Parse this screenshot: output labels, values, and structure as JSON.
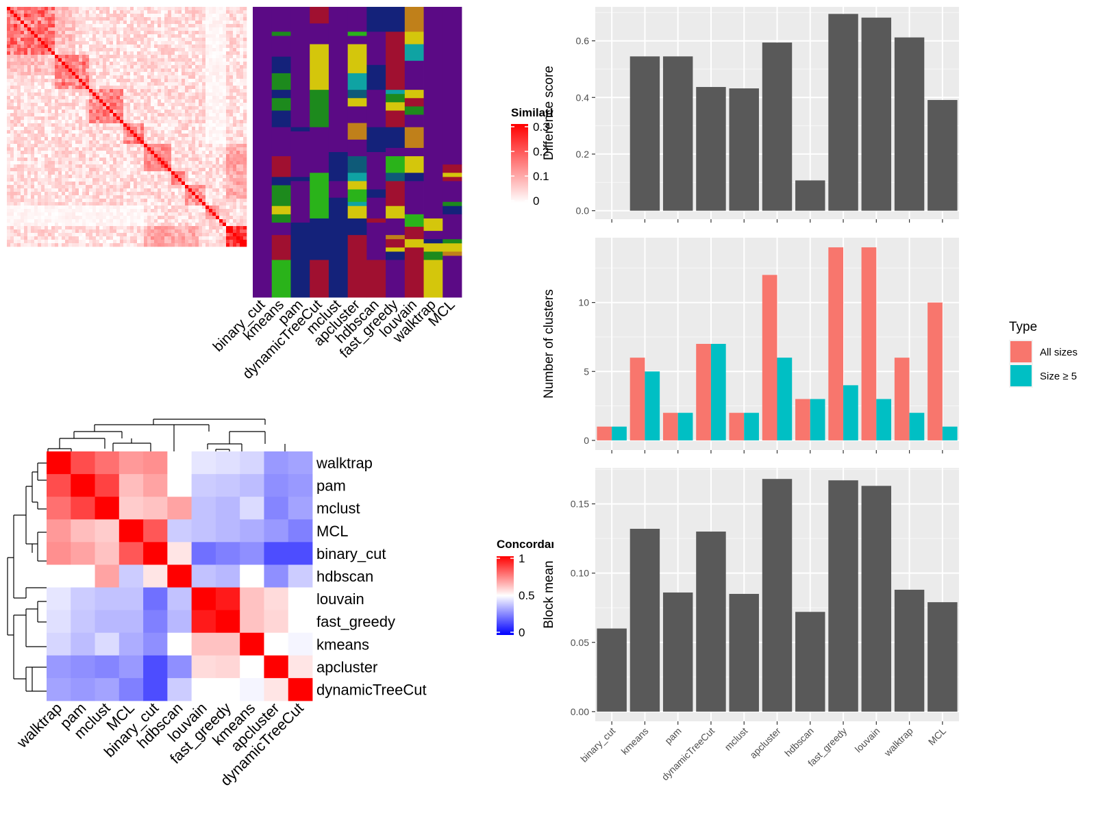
{
  "chart_data": [
    {
      "type": "heatmap",
      "name": "similarity-matrix",
      "legend_title": "Similarity",
      "legend_ticks": [
        0.3,
        0.2,
        0.1,
        0
      ],
      "legend_tick_labels": [
        "0.3",
        "0.2",
        "0.1",
        "0"
      ],
      "value_range": [
        0,
        0.3
      ],
      "colors": {
        "low": "#ffffff",
        "high": "#ff0000"
      },
      "n": 70,
      "block_starts": [
        0,
        14,
        24,
        34,
        40,
        48,
        52,
        58,
        62,
        64
      ],
      "notes": "70x70 symmetric similarity matrix with strong diagonal and a bright bottom-right block; cell values are approximated from the image"
    },
    {
      "type": "heatmap",
      "name": "cluster-labels",
      "columns": [
        "binary_cut",
        "kmeans",
        "pam",
        "dynamicTreeCut",
        "mclust",
        "apcluster",
        "hdbscan",
        "fast_greedy",
        "louvain",
        "walktrap",
        "MCL"
      ],
      "palette": [
        "#5B0A85",
        "#14227A",
        "#1D8A1D",
        "#A01030",
        "#D4C60C",
        "#0FA3A3",
        "#C0801A",
        "#2AB31A",
        "#0E5A78"
      ],
      "segments": [
        [
          [
            0,
            70,
            0
          ]
        ],
        [
          [
            0,
            6,
            0
          ],
          [
            6,
            7,
            2
          ],
          [
            7,
            12,
            0
          ],
          [
            12,
            16,
            1
          ],
          [
            16,
            20,
            2
          ],
          [
            20,
            22,
            1
          ],
          [
            22,
            25,
            2
          ],
          [
            25,
            29,
            1
          ],
          [
            29,
            36,
            0
          ],
          [
            36,
            41,
            3
          ],
          [
            41,
            43,
            1
          ],
          [
            43,
            48,
            2
          ],
          [
            48,
            50,
            4
          ],
          [
            50,
            52,
            2
          ],
          [
            52,
            55,
            0
          ],
          [
            55,
            56,
            3
          ],
          [
            56,
            61,
            3
          ],
          [
            61,
            70,
            7
          ]
        ],
        [
          [
            0,
            29,
            0
          ],
          [
            29,
            30,
            1
          ],
          [
            30,
            41,
            0
          ],
          [
            41,
            42,
            1
          ],
          [
            42,
            52,
            0
          ],
          [
            52,
            70,
            1
          ]
        ],
        [
          [
            0,
            4,
            3
          ],
          [
            4,
            9,
            0
          ],
          [
            9,
            20,
            4
          ],
          [
            20,
            29,
            2
          ],
          [
            29,
            40,
            0
          ],
          [
            40,
            51,
            7
          ],
          [
            51,
            61,
            1
          ],
          [
            61,
            70,
            3
          ]
        ],
        [
          [
            0,
            35,
            0
          ],
          [
            35,
            42,
            1
          ],
          [
            42,
            46,
            0
          ],
          [
            46,
            47,
            1
          ],
          [
            47,
            70,
            1
          ]
        ],
        [
          [
            0,
            6,
            0
          ],
          [
            6,
            7,
            7
          ],
          [
            7,
            9,
            0
          ],
          [
            9,
            16,
            4
          ],
          [
            16,
            20,
            5
          ],
          [
            20,
            22,
            8
          ],
          [
            22,
            24,
            4
          ],
          [
            24,
            28,
            0
          ],
          [
            28,
            32,
            6
          ],
          [
            32,
            36,
            0
          ],
          [
            36,
            40,
            8
          ],
          [
            40,
            42,
            5
          ],
          [
            42,
            44,
            4
          ],
          [
            44,
            47,
            7
          ],
          [
            47,
            48,
            5
          ],
          [
            48,
            51,
            4
          ],
          [
            51,
            55,
            1
          ],
          [
            55,
            59,
            3
          ],
          [
            59,
            64,
            3
          ],
          [
            64,
            70,
            3
          ]
        ],
        [
          [
            0,
            6,
            1
          ],
          [
            6,
            14,
            0
          ],
          [
            14,
            15,
            1
          ],
          [
            15,
            20,
            1
          ],
          [
            20,
            29,
            0
          ],
          [
            29,
            35,
            1
          ],
          [
            35,
            44,
            0
          ],
          [
            44,
            46,
            1
          ],
          [
            46,
            51,
            0
          ],
          [
            51,
            52,
            3
          ],
          [
            52,
            61,
            0
          ],
          [
            61,
            70,
            3
          ]
        ],
        [
          [
            0,
            6,
            1
          ],
          [
            6,
            9,
            3
          ],
          [
            9,
            20,
            3
          ],
          [
            20,
            21,
            5
          ],
          [
            21,
            23,
            2
          ],
          [
            23,
            25,
            4
          ],
          [
            25,
            29,
            3
          ],
          [
            29,
            34,
            1
          ],
          [
            34,
            36,
            0
          ],
          [
            36,
            40,
            7
          ],
          [
            40,
            42,
            8
          ],
          [
            42,
            48,
            3
          ],
          [
            48,
            51,
            4
          ],
          [
            51,
            55,
            0
          ],
          [
            55,
            56,
            6
          ],
          [
            56,
            58,
            3
          ],
          [
            58,
            59,
            4
          ],
          [
            59,
            61,
            1
          ],
          [
            61,
            70,
            0
          ]
        ],
        [
          [
            0,
            6,
            6
          ],
          [
            6,
            9,
            4
          ],
          [
            9,
            13,
            5
          ],
          [
            13,
            20,
            0
          ],
          [
            20,
            22,
            4
          ],
          [
            22,
            24,
            3
          ],
          [
            24,
            26,
            2
          ],
          [
            26,
            29,
            0
          ],
          [
            29,
            34,
            6
          ],
          [
            34,
            36,
            0
          ],
          [
            36,
            40,
            4
          ],
          [
            40,
            42,
            1
          ],
          [
            42,
            50,
            0
          ],
          [
            50,
            53,
            7
          ],
          [
            53,
            56,
            3
          ],
          [
            56,
            58,
            4
          ],
          [
            58,
            61,
            3
          ],
          [
            61,
            70,
            3
          ]
        ],
        [
          [
            0,
            51,
            0
          ],
          [
            51,
            54,
            4
          ],
          [
            54,
            56,
            0
          ],
          [
            56,
            57,
            1
          ],
          [
            57,
            59,
            4
          ],
          [
            59,
            61,
            2
          ],
          [
            61,
            70,
            4
          ]
        ],
        [
          [
            0,
            38,
            0
          ],
          [
            38,
            40,
            3
          ],
          [
            40,
            41,
            4
          ],
          [
            41,
            42,
            3
          ],
          [
            42,
            47,
            0
          ],
          [
            47,
            48,
            2
          ],
          [
            48,
            50,
            1
          ],
          [
            50,
            56,
            0
          ],
          [
            56,
            57,
            2
          ],
          [
            57,
            59,
            4
          ],
          [
            59,
            60,
            6
          ],
          [
            60,
            70,
            0
          ]
        ]
      ]
    },
    {
      "type": "heatmap",
      "name": "concordance",
      "legend_title": "Concordance",
      "legend_ticks": [
        1,
        0.5,
        0
      ],
      "legend_tick_labels": [
        "1",
        "0.5",
        "0"
      ],
      "value_range": [
        0,
        1
      ],
      "colors": {
        "low": "#0000ff",
        "mid": "#ffffff",
        "high": "#ff0000"
      },
      "row_labels": [
        "walktrap",
        "pam",
        "mclust",
        "MCL",
        "binary_cut",
        "hdbscan",
        "louvain",
        "fast_greedy",
        "kmeans",
        "apcluster",
        "dynamicTreeCut"
      ],
      "col_labels": [
        "walktrap",
        "pam",
        "mclust",
        "MCL",
        "binary_cut",
        "hdbscan",
        "louvain",
        "fast_greedy",
        "kmeans",
        "apcluster",
        "dynamicTreeCut"
      ],
      "values": [
        [
          1.0,
          0.85,
          0.78,
          0.7,
          0.72,
          0.5,
          0.45,
          0.44,
          0.42,
          0.3,
          0.32
        ],
        [
          0.85,
          1.0,
          0.87,
          0.63,
          0.68,
          0.5,
          0.4,
          0.39,
          0.37,
          0.28,
          0.3
        ],
        [
          0.78,
          0.87,
          1.0,
          0.6,
          0.62,
          0.68,
          0.38,
          0.36,
          0.43,
          0.26,
          0.32
        ],
        [
          0.7,
          0.63,
          0.6,
          1.0,
          0.83,
          0.4,
          0.38,
          0.36,
          0.34,
          0.3,
          0.25
        ],
        [
          0.72,
          0.68,
          0.62,
          0.83,
          1.0,
          0.55,
          0.22,
          0.25,
          0.28,
          0.15,
          0.15
        ],
        [
          0.5,
          0.5,
          0.68,
          0.4,
          0.55,
          1.0,
          0.38,
          0.36,
          0.5,
          0.28,
          0.4
        ],
        [
          0.45,
          0.4,
          0.38,
          0.38,
          0.22,
          0.38,
          1.0,
          0.95,
          0.62,
          0.57,
          0.5
        ],
        [
          0.44,
          0.39,
          0.36,
          0.36,
          0.25,
          0.36,
          0.95,
          1.0,
          0.62,
          0.58,
          0.5
        ],
        [
          0.42,
          0.37,
          0.43,
          0.34,
          0.28,
          0.5,
          0.62,
          0.62,
          1.0,
          0.5,
          0.48
        ],
        [
          0.3,
          0.28,
          0.26,
          0.3,
          0.15,
          0.28,
          0.57,
          0.58,
          0.5,
          1.0,
          0.55
        ],
        [
          0.32,
          0.3,
          0.32,
          0.25,
          0.15,
          0.4,
          0.5,
          0.5,
          0.48,
          0.55,
          1.0
        ]
      ]
    },
    {
      "type": "bar",
      "name": "difference-score",
      "categories": [
        "binary_cut",
        "kmeans",
        "pam",
        "dynamicTreeCut",
        "mclust",
        "apcluster",
        "hdbscan",
        "fast_greedy",
        "louvain",
        "walktrap",
        "MCL"
      ],
      "values": [
        0.0,
        0.545,
        0.545,
        0.437,
        0.432,
        0.594,
        0.107,
        0.695,
        0.682,
        0.612,
        0.391
      ],
      "ylabel": "Difference score",
      "xlabel": "",
      "ylim": [
        -0.03,
        0.72
      ],
      "yticks": [
        0.0,
        0.2,
        0.4,
        0.6
      ],
      "ytick_labels": [
        "0.0",
        "0.2",
        "0.4",
        "0.6"
      ],
      "bar_color": "#595959",
      "panel_color": "#EBEBEB",
      "grid": true
    },
    {
      "type": "bar",
      "name": "number-of-clusters",
      "categories": [
        "binary_cut",
        "kmeans",
        "pam",
        "dynamicTreeCut",
        "mclust",
        "apcluster",
        "hdbscan",
        "fast_greedy",
        "louvain",
        "walktrap",
        "MCL"
      ],
      "series": [
        {
          "name": "All sizes",
          "color": "#F8766D",
          "values": [
            1,
            6,
            2,
            7,
            2,
            12,
            3,
            14,
            14,
            6,
            10
          ]
        },
        {
          "name": "Size ≥ 5",
          "color": "#00BFC4",
          "values": [
            1,
            5,
            2,
            7,
            2,
            6,
            3,
            4,
            3,
            2,
            1
          ]
        }
      ],
      "ylabel": "Number of clusters",
      "xlabel": "",
      "ylim": [
        -0.7,
        14.7
      ],
      "yticks": [
        0,
        5,
        10
      ],
      "ytick_labels": [
        "0",
        "5",
        "10"
      ],
      "legend_title": "Type",
      "legend_position": "right",
      "panel_color": "#EBEBEB",
      "grid": true
    },
    {
      "type": "bar",
      "name": "block-mean",
      "categories": [
        "binary_cut",
        "kmeans",
        "pam",
        "dynamicTreeCut",
        "mclust",
        "apcluster",
        "hdbscan",
        "fast_greedy",
        "louvain",
        "walktrap",
        "MCL"
      ],
      "values": [
        0.06,
        0.132,
        0.086,
        0.13,
        0.085,
        0.168,
        0.072,
        0.167,
        0.163,
        0.088,
        0.079
      ],
      "ylabel": "Block mean",
      "xlabel": "",
      "ylim": [
        -0.007,
        0.176
      ],
      "yticks": [
        0.0,
        0.05,
        0.1,
        0.15
      ],
      "ytick_labels": [
        "0.00",
        "0.05",
        "0.10",
        "0.15"
      ],
      "bar_color": "#595959",
      "panel_color": "#EBEBEB",
      "grid": true
    }
  ]
}
